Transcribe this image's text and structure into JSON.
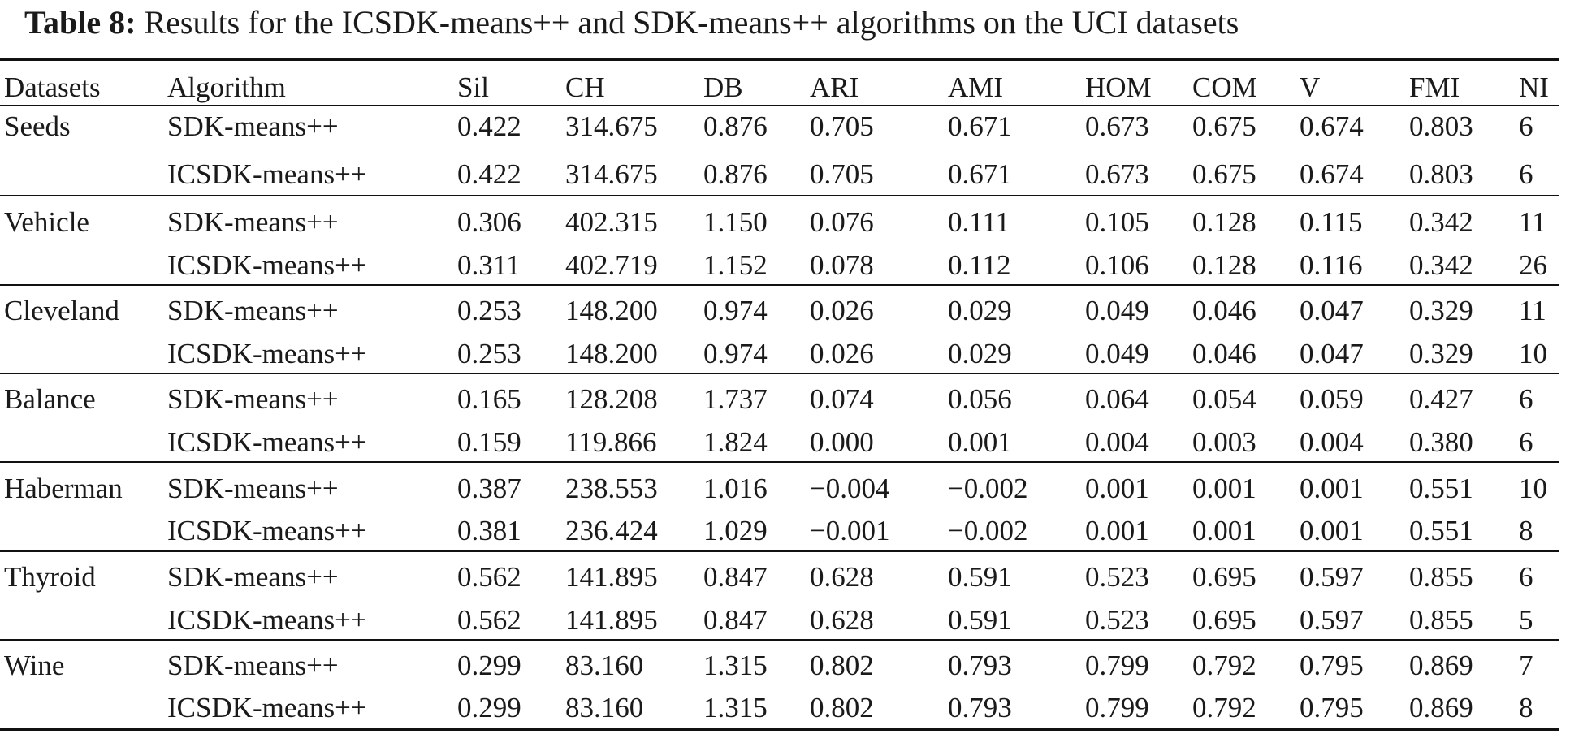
{
  "caption": {
    "label": "Table 8:",
    "text": "Results for the ICSDK-means++ and SDK-means++ algorithms on the UCI datasets"
  },
  "table": {
    "headers": [
      "Datasets",
      "Algorithm",
      "Sil",
      "CH",
      "DB",
      "ARI",
      "AMI",
      "HOM",
      "COM",
      "V",
      "FMI",
      "NI"
    ],
    "groups": [
      {
        "dataset": "Seeds",
        "rows": [
          [
            "SDK-means++",
            "0.422",
            "314.675",
            "0.876",
            "0.705",
            "0.671",
            "0.673",
            "0.675",
            "0.674",
            "0.803",
            "6"
          ],
          [
            "ICSDK-means++",
            "0.422",
            "314.675",
            "0.876",
            "0.705",
            "0.671",
            "0.673",
            "0.675",
            "0.674",
            "0.803",
            "6"
          ]
        ]
      },
      {
        "dataset": "Vehicle",
        "rows": [
          [
            "SDK-means++",
            "0.306",
            "402.315",
            "1.150",
            "0.076",
            "0.111",
            "0.105",
            "0.128",
            "0.115",
            "0.342",
            "11"
          ],
          [
            "ICSDK-means++",
            "0.311",
            "402.719",
            "1.152",
            "0.078",
            "0.112",
            "0.106",
            "0.128",
            "0.116",
            "0.342",
            "26"
          ]
        ]
      },
      {
        "dataset": "Cleveland",
        "rows": [
          [
            "SDK-means++",
            "0.253",
            "148.200",
            "0.974",
            "0.026",
            "0.029",
            "0.049",
            "0.046",
            "0.047",
            "0.329",
            "11"
          ],
          [
            "ICSDK-means++",
            "0.253",
            "148.200",
            "0.974",
            "0.026",
            "0.029",
            "0.049",
            "0.046",
            "0.047",
            "0.329",
            "10"
          ]
        ]
      },
      {
        "dataset": "Balance",
        "rows": [
          [
            "SDK-means++",
            "0.165",
            "128.208",
            "1.737",
            "0.074",
            "0.056",
            "0.064",
            "0.054",
            "0.059",
            "0.427",
            "6"
          ],
          [
            "ICSDK-means++",
            "0.159",
            "119.866",
            "1.824",
            "0.000",
            "0.001",
            "0.004",
            "0.003",
            "0.004",
            "0.380",
            "6"
          ]
        ]
      },
      {
        "dataset": "Haberman",
        "rows": [
          [
            "SDK-means++",
            "0.387",
            "238.553",
            "1.016",
            "−0.004",
            "−0.002",
            "0.001",
            "0.001",
            "0.001",
            "0.551",
            "10"
          ],
          [
            "ICSDK-means++",
            "0.381",
            "236.424",
            "1.029",
            "−0.001",
            "−0.002",
            "0.001",
            "0.001",
            "0.001",
            "0.551",
            "8"
          ]
        ]
      },
      {
        "dataset": "Thyroid",
        "rows": [
          [
            "SDK-means++",
            "0.562",
            "141.895",
            "0.847",
            "0.628",
            "0.591",
            "0.523",
            "0.695",
            "0.597",
            "0.855",
            "6"
          ],
          [
            "ICSDK-means++",
            "0.562",
            "141.895",
            "0.847",
            "0.628",
            "0.591",
            "0.523",
            "0.695",
            "0.597",
            "0.855",
            "5"
          ]
        ]
      },
      {
        "dataset": "Wine",
        "rows": [
          [
            "SDK-means++",
            "0.299",
            "83.160",
            "1.315",
            "0.802",
            "0.793",
            "0.799",
            "0.792",
            "0.795",
            "0.869",
            "7"
          ],
          [
            "ICSDK-means++",
            "0.299",
            "83.160",
            "1.315",
            "0.802",
            "0.793",
            "0.799",
            "0.792",
            "0.795",
            "0.869",
            "8"
          ]
        ]
      }
    ]
  }
}
